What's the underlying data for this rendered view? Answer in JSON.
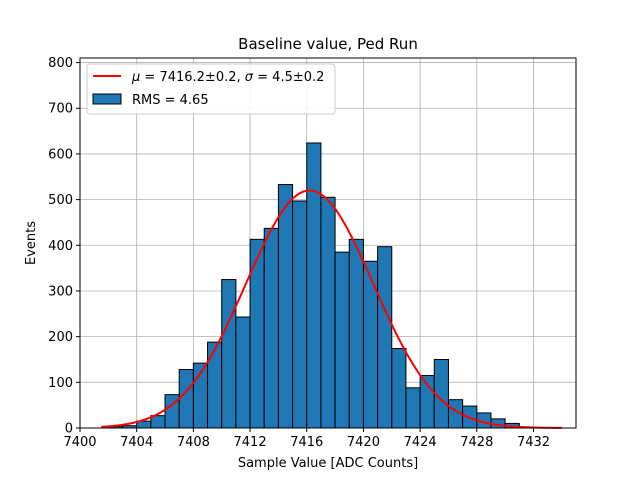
{
  "chart_data": {
    "type": "bar",
    "title": "Baseline value, Ped Run",
    "xlabel": "Sample Value [ADC Counts]",
    "ylabel": "Events",
    "xlim": [
      7400,
      7435
    ],
    "ylim": [
      0,
      810
    ],
    "xticks": [
      7400,
      7404,
      7408,
      7412,
      7416,
      7420,
      7424,
      7428,
      7432
    ],
    "yticks": [
      0,
      100,
      200,
      300,
      400,
      500,
      600,
      700,
      800
    ],
    "grid": true,
    "legend_position": "top-left",
    "histogram": {
      "name": "RMS = 4.65",
      "color": "#1f77b4",
      "edge_color": "#000000",
      "bins": [
        {
          "x0": 7402.0,
          "x1": 7403.0,
          "count": 3
        },
        {
          "x0": 7403.0,
          "x1": 7404.0,
          "count": 5
        },
        {
          "x0": 7404.0,
          "x1": 7405.0,
          "count": 15
        },
        {
          "x0": 7405.0,
          "x1": 7406.0,
          "count": 27
        },
        {
          "x0": 7406.0,
          "x1": 7407.0,
          "count": 73
        },
        {
          "x0": 7407.0,
          "x1": 7408.0,
          "count": 128
        },
        {
          "x0": 7408.0,
          "x1": 7409.0,
          "count": 142
        },
        {
          "x0": 7409.0,
          "x1": 7410.0,
          "count": 188
        },
        {
          "x0": 7410.0,
          "x1": 7411.0,
          "count": 325
        },
        {
          "x0": 7411.0,
          "x1": 7412.0,
          "count": 243
        },
        {
          "x0": 7412.0,
          "x1": 7413.0,
          "count": 413
        },
        {
          "x0": 7413.0,
          "x1": 7414.0,
          "count": 437
        },
        {
          "x0": 7414.0,
          "x1": 7415.0,
          "count": 533
        },
        {
          "x0": 7415.0,
          "x1": 7416.0,
          "count": 497
        },
        {
          "x0": 7416.0,
          "x1": 7417.0,
          "count": 624
        },
        {
          "x0": 7417.0,
          "x1": 7418.0,
          "count": 505
        },
        {
          "x0": 7418.0,
          "x1": 7419.0,
          "count": 385
        },
        {
          "x0": 7419.0,
          "x1": 7420.0,
          "count": 413
        },
        {
          "x0": 7420.0,
          "x1": 7421.0,
          "count": 365
        },
        {
          "x0": 7421.0,
          "x1": 7422.0,
          "count": 397
        },
        {
          "x0": 7422.0,
          "x1": 7423.0,
          "count": 174
        },
        {
          "x0": 7423.0,
          "x1": 7424.0,
          "count": 88
        },
        {
          "x0": 7424.0,
          "x1": 7425.0,
          "count": 115
        },
        {
          "x0": 7425.0,
          "x1": 7426.0,
          "count": 150
        },
        {
          "x0": 7426.0,
          "x1": 7427.0,
          "count": 62
        },
        {
          "x0": 7427.0,
          "x1": 7428.0,
          "count": 48
        },
        {
          "x0": 7428.0,
          "x1": 7429.0,
          "count": 33
        },
        {
          "x0": 7429.0,
          "x1": 7430.0,
          "count": 20
        },
        {
          "x0": 7430.0,
          "x1": 7431.0,
          "count": 10
        }
      ]
    },
    "fit": {
      "name_parts": [
        "μ",
        " = 7416.2±0.2, ",
        "σ",
        " = 4.5±0.2"
      ],
      "color": "#ff0000",
      "mu": 7416.2,
      "sigma": 4.5,
      "peak": 520,
      "x_range": [
        7401.5,
        7434.0
      ]
    }
  }
}
